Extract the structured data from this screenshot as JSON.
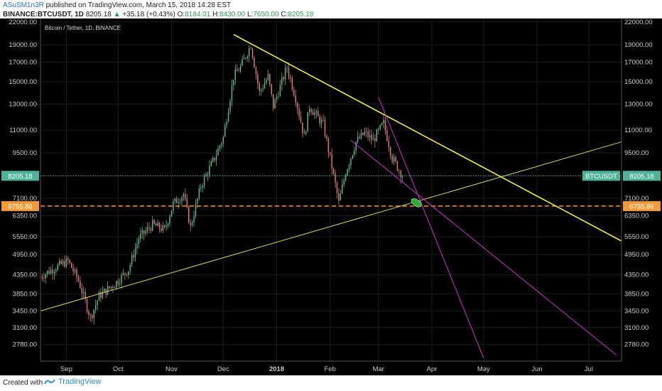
{
  "header": {
    "author": "ASuSM1n3R",
    "published_text": "published on TradingView.com, March 15, 2018 14:28 EST",
    "symbol_label": "BINANCE:BTCUSDT, 1D",
    "last_price": "8205.18",
    "change": "+35.18 (+0.43%)",
    "open_label": "O:",
    "open": "8184.01",
    "high_label": "H:",
    "high": "8430.00",
    "low_label": "L:",
    "low": "7650.00",
    "close_label": "C:",
    "close": "8205.18"
  },
  "footer": {
    "created_with": "Created with",
    "brand": "TradingView"
  },
  "chart_data": {
    "type": "candlestick",
    "title": "Bitcoin / Tether, 1D, BINANCE",
    "y_scale": "log",
    "ylim": [
      2500,
      22500
    ],
    "y_ticks": [
      22000,
      19000,
      17000,
      15000,
      13000,
      11000,
      9500,
      8205.18,
      7100,
      6755.86,
      6350,
      5550,
      4950,
      4350,
      3850,
      3450,
      3100,
      2780
    ],
    "y_tick_labels": [
      "22000.00",
      "19000.00",
      "17000.00",
      "15000.00",
      "13000.00",
      "11000.00",
      "9500.00",
      "8205.18",
      "7100.00",
      "6755.86",
      "6350.00",
      "5550.00",
      "4950.00",
      "4350.00",
      "3850.00",
      "3450.00",
      "3100.00",
      "2780.00"
    ],
    "x_range": [
      "2017-08-17",
      "2018-07-20"
    ],
    "x_ticks": [
      {
        "date": "2017-09-01",
        "label": "Sep"
      },
      {
        "date": "2017-10-01",
        "label": "Oct"
      },
      {
        "date": "2017-11-01",
        "label": "Nov"
      },
      {
        "date": "2017-12-01",
        "label": "Dec"
      },
      {
        "date": "2018-01-01",
        "label": "2018"
      },
      {
        "date": "2018-02-01",
        "label": "Feb"
      },
      {
        "date": "2018-03-01",
        "label": "Mar"
      },
      {
        "date": "2018-04-01",
        "label": "Apr"
      },
      {
        "date": "2018-05-01",
        "label": "May"
      },
      {
        "date": "2018-06-01",
        "label": "Jun"
      },
      {
        "date": "2018-07-01",
        "label": "Jul"
      }
    ],
    "price_path": [
      [
        "2017-08-17",
        4300
      ],
      [
        "2017-08-27",
        4600
      ],
      [
        "2017-09-02",
        4750
      ],
      [
        "2017-09-08",
        4200
      ],
      [
        "2017-09-15",
        3300
      ],
      [
        "2017-09-20",
        3800
      ],
      [
        "2017-09-29",
        4100
      ],
      [
        "2017-10-07",
        4500
      ],
      [
        "2017-10-13",
        5500
      ],
      [
        "2017-10-21",
        6000
      ],
      [
        "2017-10-28",
        5800
      ],
      [
        "2017-11-02",
        6850
      ],
      [
        "2017-11-08",
        7300
      ],
      [
        "2017-11-12",
        5900
      ],
      [
        "2017-11-18",
        7700
      ],
      [
        "2017-11-26",
        9200
      ],
      [
        "2017-12-01",
        10500
      ],
      [
        "2017-12-07",
        15500
      ],
      [
        "2017-12-11",
        16500
      ],
      [
        "2017-12-17",
        19000
      ],
      [
        "2017-12-22",
        14000
      ],
      [
        "2017-12-27",
        15500
      ],
      [
        "2017-12-30",
        12800
      ],
      [
        "2018-01-07",
        16500
      ],
      [
        "2018-01-12",
        13500
      ],
      [
        "2018-01-17",
        10500
      ],
      [
        "2018-01-20",
        12800
      ],
      [
        "2018-01-28",
        11400
      ],
      [
        "2018-02-02",
        8700
      ],
      [
        "2018-02-06",
        6900
      ],
      [
        "2018-02-10",
        8400
      ],
      [
        "2018-02-16",
        10200
      ],
      [
        "2018-02-21",
        10800
      ],
      [
        "2018-02-26",
        10300
      ],
      [
        "2018-03-04",
        11500
      ],
      [
        "2018-03-09",
        9200
      ],
      [
        "2018-03-15",
        8205.18
      ]
    ],
    "trendlines": [
      {
        "color": "#ffff33",
        "width": 1.5,
        "points": [
          [
            "2017-12-07",
            20300
          ],
          [
            "2018-07-20",
            5400
          ]
        ]
      },
      {
        "color": "#d8d860",
        "width": 1,
        "points": [
          [
            "2017-08-17",
            3450
          ],
          [
            "2018-07-20",
            10200
          ]
        ]
      },
      {
        "color": "#cc33cc",
        "width": 1,
        "points": [
          [
            "2018-02-13",
            10300
          ],
          [
            "2018-07-17",
            2600
          ]
        ]
      },
      {
        "color": "#cc33cc",
        "width": 1,
        "points": [
          [
            "2018-03-01",
            13600
          ],
          [
            "2018-05-01",
            2550
          ]
        ]
      }
    ],
    "horizontal_lines": [
      {
        "value": 8205.18,
        "color": "#4db3a0",
        "style": "dotted",
        "label": "8205.18",
        "tag": "BTCUSDT"
      },
      {
        "value": 6755.86,
        "color": "#ff9900",
        "style": "dashed",
        "label": "6755.86"
      }
    ],
    "marker": {
      "date": "2018-03-23",
      "value": 6900,
      "color": "#33aa33",
      "shape": "ellipse"
    },
    "colors": {
      "background": "#000000",
      "up": "#5fb98f",
      "down": "#e07a84",
      "axis_text": "#cccccc"
    }
  }
}
